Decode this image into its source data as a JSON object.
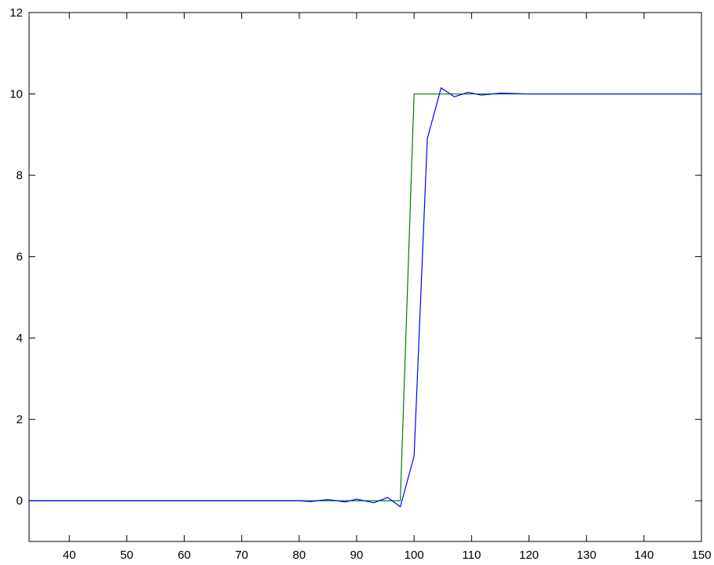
{
  "chart_data": {
    "type": "line",
    "title": "",
    "xlabel": "",
    "ylabel": "",
    "xlim": [
      33,
      150
    ],
    "ylim": [
      -1,
      12
    ],
    "grid": false,
    "x_ticks": [
      40,
      50,
      60,
      70,
      80,
      90,
      100,
      110,
      120,
      130,
      140,
      150
    ],
    "y_ticks": [
      0,
      2,
      4,
      6,
      8,
      10,
      12
    ],
    "series": [
      {
        "color": "#007f00",
        "x": [
          33,
          97.6,
          97.6,
          100,
          150
        ],
        "y": [
          0,
          0,
          0,
          10,
          10
        ]
      },
      {
        "color": "#0000ff",
        "x": [
          33,
          35,
          40,
          45,
          50,
          55,
          60,
          65,
          70,
          75,
          80,
          82,
          85,
          88,
          90,
          93,
          95.4,
          97.6,
          100,
          102.3,
          104.7,
          107,
          109.4,
          111.7,
          115,
          120,
          125,
          130,
          135,
          140,
          145,
          150
        ],
        "y": [
          0,
          0,
          0,
          0,
          0,
          0,
          0,
          0,
          0,
          0,
          0,
          -0.02,
          0.03,
          -0.03,
          0.04,
          -0.05,
          0.08,
          -0.15,
          1.1,
          8.9,
          10.15,
          9.93,
          10.04,
          9.97,
          10.02,
          10,
          10,
          10,
          10,
          10,
          10,
          10
        ]
      }
    ]
  }
}
